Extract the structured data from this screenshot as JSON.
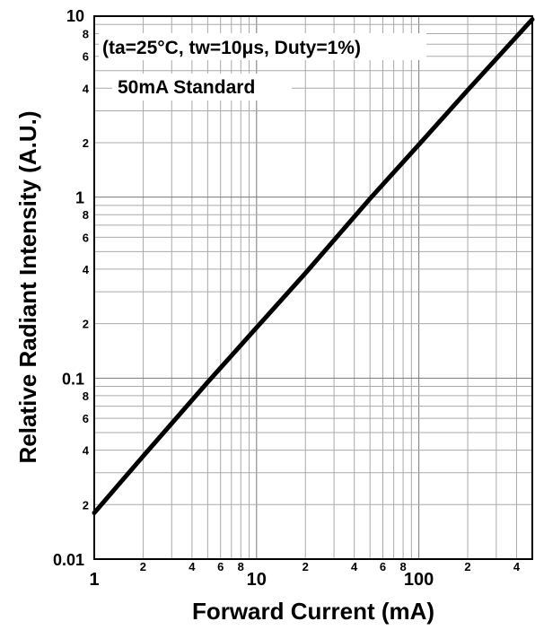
{
  "chart_data": {
    "type": "line",
    "xlabel": "Forward Current (mA)",
    "ylabel": "Relative Radiant Intensity (A.U.)",
    "x_scale": "log",
    "y_scale": "log",
    "xlim": [
      1,
      500
    ],
    "ylim": [
      0.01,
      10
    ],
    "grid": true,
    "annotations": [
      "(ta=25°C, tw=10μs, Duty=1%)",
      "50mA Standard"
    ],
    "x_major_ticks": [
      {
        "value": 1,
        "label": "1"
      },
      {
        "value": 10,
        "label": "10"
      },
      {
        "value": 100,
        "label": "100"
      }
    ],
    "x_minor_ticks": [
      {
        "value": 2,
        "label": "2"
      },
      {
        "value": 4,
        "label": "4"
      },
      {
        "value": 6,
        "label": "6"
      },
      {
        "value": 8,
        "label": "8"
      },
      {
        "value": 20,
        "label": "2"
      },
      {
        "value": 40,
        "label": "4"
      },
      {
        "value": 60,
        "label": "6"
      },
      {
        "value": 80,
        "label": "8"
      },
      {
        "value": 200,
        "label": "2"
      },
      {
        "value": 400,
        "label": "4"
      }
    ],
    "y_major_ticks": [
      {
        "value": 0.01,
        "label": "0.01"
      },
      {
        "value": 0.1,
        "label": "0.1"
      },
      {
        "value": 1,
        "label": "1"
      },
      {
        "value": 10,
        "label": "10"
      }
    ],
    "y_minor_ticks": [
      {
        "value": 0.02,
        "label": "2"
      },
      {
        "value": 0.04,
        "label": "4"
      },
      {
        "value": 0.06,
        "label": "6"
      },
      {
        "value": 0.08,
        "label": "8"
      },
      {
        "value": 0.2,
        "label": "2"
      },
      {
        "value": 0.4,
        "label": "4"
      },
      {
        "value": 0.6,
        "label": "6"
      },
      {
        "value": 0.8,
        "label": "8"
      },
      {
        "value": 2,
        "label": "2"
      },
      {
        "value": 4,
        "label": "4"
      },
      {
        "value": 6,
        "label": "6"
      },
      {
        "value": 8,
        "label": "8"
      }
    ],
    "series": [
      {
        "color": "#000000",
        "points": [
          {
            "x": 1,
            "y": 0.018
          },
          {
            "x": 2,
            "y": 0.037
          },
          {
            "x": 5,
            "y": 0.095
          },
          {
            "x": 10,
            "y": 0.19
          },
          {
            "x": 20,
            "y": 0.38
          },
          {
            "x": 50,
            "y": 0.98
          },
          {
            "x": 100,
            "y": 1.95
          },
          {
            "x": 200,
            "y": 3.9
          },
          {
            "x": 500,
            "y": 9.6
          }
        ]
      }
    ]
  }
}
